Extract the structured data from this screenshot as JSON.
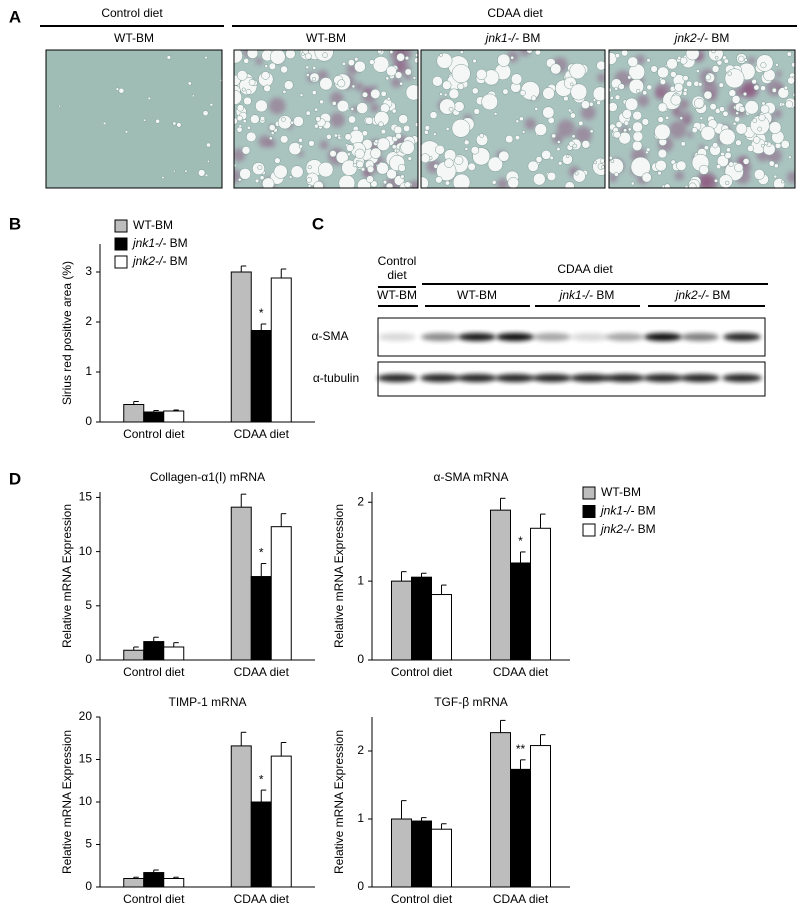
{
  "panel_labels": [
    "A",
    "B",
    "C",
    "D"
  ],
  "histology": {
    "groups": [
      "Control diet",
      "CDAA diet"
    ],
    "images": [
      "WT-BM",
      "WT-BM",
      "jnk1-/- BM",
      "jnk2-/- BM"
    ]
  },
  "blot": {
    "control_label": [
      "Control",
      "diet"
    ],
    "cdaa_label": "CDAA diet",
    "lanes": [
      "WT-BM",
      "WT-BM",
      "jnk1-/- BM",
      "jnk2-/- BM"
    ],
    "rows": [
      "α-SMA",
      "α-tubulin"
    ]
  },
  "chart_data": [
    {
      "type": "bar",
      "ylabel": "Sirius red positive area (%)",
      "categories": [
        "Control diet",
        "CDAA diet"
      ],
      "series": [
        {
          "name": "WT-BM",
          "color": "#bdbdbd",
          "values": [
            0.35,
            3.0
          ],
          "errors": [
            0.06,
            0.12
          ]
        },
        {
          "name": "jnk1-/- BM",
          "color": "#000000",
          "values": [
            0.2,
            1.83
          ],
          "errors": [
            0.03,
            0.13
          ],
          "significance": [
            null,
            "*"
          ]
        },
        {
          "name": "jnk2-/- BM",
          "color": "#ffffff",
          "values": [
            0.22,
            2.88
          ],
          "errors": [
            0.02,
            0.18
          ]
        }
      ],
      "ylim": [
        0,
        3.56
      ],
      "yticks": [
        0,
        1,
        2,
        3
      ]
    },
    {
      "type": "bar",
      "title": "Collagen-α1(Ⅰ) mRNA",
      "ylabel": "Relative mRNA Expression",
      "categories": [
        "Control diet",
        "CDAA diet"
      ],
      "series": [
        {
          "name": "WT-BM",
          "color": "#bdbdbd",
          "values": [
            0.9,
            14.1
          ],
          "errors": [
            0.3,
            1.2
          ]
        },
        {
          "name": "jnk1-/- BM",
          "color": "#000000",
          "values": [
            1.7,
            7.7
          ],
          "errors": [
            0.4,
            1.2
          ],
          "significance": [
            null,
            "*"
          ]
        },
        {
          "name": "jnk2-/- BM",
          "color": "#ffffff",
          "values": [
            1.2,
            12.3
          ],
          "errors": [
            0.4,
            1.2
          ]
        }
      ],
      "ylim": [
        0,
        15.5
      ],
      "yticks": [
        0,
        5,
        10,
        15
      ]
    },
    {
      "type": "bar",
      "title": "α-SMA mRNA",
      "ylabel": "Relative mRNA Expression",
      "categories": [
        "Control diet",
        "CDAA diet"
      ],
      "series": [
        {
          "name": "WT-BM",
          "color": "#bdbdbd",
          "values": [
            1.0,
            1.9
          ],
          "errors": [
            0.12,
            0.15
          ]
        },
        {
          "name": "jnk1-/- BM",
          "color": "#000000",
          "values": [
            1.05,
            1.23
          ],
          "errors": [
            0.05,
            0.14
          ],
          "significance": [
            null,
            "*"
          ]
        },
        {
          "name": "jnk2-/- BM",
          "color": "#ffffff",
          "values": [
            0.83,
            1.67
          ],
          "errors": [
            0.12,
            0.18
          ]
        }
      ],
      "ylim": [
        0,
        2.13
      ],
      "yticks": [
        0,
        1,
        2
      ]
    },
    {
      "type": "bar",
      "title": "TIMP-1 mRNA",
      "ylabel": "Relative mRNA Expression",
      "categories": [
        "Control diet",
        "CDAA diet"
      ],
      "series": [
        {
          "name": "WT-BM",
          "color": "#bdbdbd",
          "values": [
            1.0,
            16.6
          ],
          "errors": [
            0.15,
            1.6
          ]
        },
        {
          "name": "jnk1-/- BM",
          "color": "#000000",
          "values": [
            1.7,
            10.0
          ],
          "errors": [
            0.3,
            1.4
          ],
          "significance": [
            null,
            "*"
          ]
        },
        {
          "name": "jnk2-/- BM",
          "color": "#ffffff",
          "values": [
            1.0,
            15.4
          ],
          "errors": [
            0.15,
            1.6
          ]
        }
      ],
      "ylim": [
        0,
        20
      ],
      "yticks": [
        0,
        5,
        10,
        15,
        20
      ]
    },
    {
      "type": "bar",
      "title": "TGF-β mRNA",
      "ylabel": "Relative mRNA Expression",
      "categories": [
        "Control diet",
        "CDAA diet"
      ],
      "series": [
        {
          "name": "WT-BM",
          "color": "#bdbdbd",
          "values": [
            1.0,
            2.27
          ],
          "errors": [
            0.27,
            0.18
          ]
        },
        {
          "name": "jnk1-/- BM",
          "color": "#000000",
          "values": [
            0.97,
            1.73
          ],
          "errors": [
            0.05,
            0.14
          ],
          "significance": [
            null,
            "**"
          ]
        },
        {
          "name": "jnk2-/- BM",
          "color": "#ffffff",
          "values": [
            0.85,
            2.08
          ],
          "errors": [
            0.08,
            0.16
          ]
        }
      ],
      "ylim": [
        0,
        2.5
      ],
      "yticks": [
        0,
        1,
        2
      ]
    }
  ]
}
